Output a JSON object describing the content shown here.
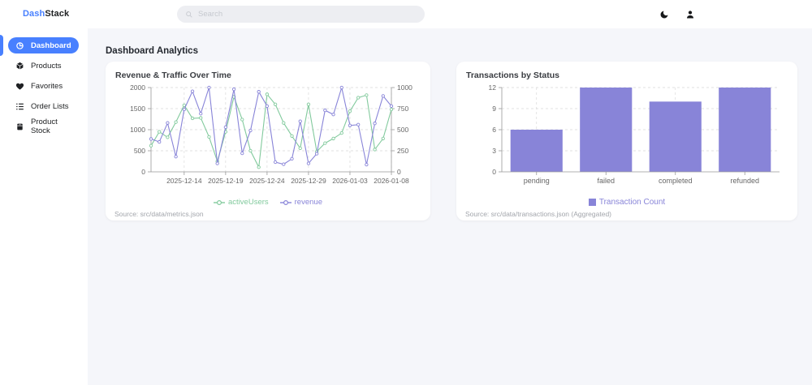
{
  "header": {
    "logo_part1": "Dash",
    "logo_part2": "Stack",
    "search_placeholder": "Search",
    "theme_toggle": "dark-mode",
    "account": "user"
  },
  "sidebar": {
    "items": [
      {
        "label": "Dashboard",
        "icon": "dashboard-icon",
        "active": true
      },
      {
        "label": "Products",
        "icon": "products-icon",
        "active": false
      },
      {
        "label": "Favorites",
        "icon": "heart-icon",
        "active": false
      },
      {
        "label": "Order Lists",
        "icon": "order-list-icon",
        "active": false
      },
      {
        "label": "Product Stock",
        "icon": "product-stock-icon",
        "active": false
      }
    ]
  },
  "main": {
    "heading": "Dashboard Analytics"
  },
  "colors": {
    "accent_blue": "#4880ff",
    "series_green": "#82ca9d",
    "series_purple": "#8884d8",
    "axis_text": "#666666",
    "grid": "#d9d9d9",
    "axis_line": "#999999"
  },
  "chart_data": [
    {
      "type": "line",
      "title": "Revenue & Traffic Over Time",
      "source": "Source: src/data/metrics.json",
      "x": [
        "2025-12-10",
        "2025-12-11",
        "2025-12-12",
        "2025-12-13",
        "2025-12-14",
        "2025-12-15",
        "2025-12-16",
        "2025-12-17",
        "2025-12-18",
        "2025-12-19",
        "2025-12-20",
        "2025-12-21",
        "2025-12-22",
        "2025-12-23",
        "2025-12-24",
        "2025-12-25",
        "2025-12-26",
        "2025-12-27",
        "2025-12-28",
        "2025-12-29",
        "2025-12-30",
        "2025-12-31",
        "2026-01-01",
        "2026-01-02",
        "2026-01-03",
        "2026-01-04",
        "2026-01-05",
        "2026-01-06",
        "2026-01-07",
        "2026-01-08"
      ],
      "x_tick_labels": [
        "2025-12-14",
        "2025-12-19",
        "2025-12-24",
        "2025-12-29",
        "2026-01-03",
        "2026-01-08"
      ],
      "series": [
        {
          "name": "activeUsers",
          "axis": "left",
          "color": "#82ca9d",
          "values": [
            620,
            950,
            820,
            1180,
            1580,
            1270,
            1280,
            830,
            250,
            950,
            1780,
            1240,
            500,
            110,
            1840,
            1600,
            1160,
            850,
            560,
            1600,
            480,
            680,
            790,
            920,
            1440,
            1760,
            1820,
            530,
            790,
            1480
          ]
        },
        {
          "name": "revenue",
          "axis": "right",
          "color": "#8884d8",
          "values": [
            390,
            355,
            580,
            180,
            740,
            955,
            690,
            1000,
            100,
            530,
            980,
            220,
            490,
            950,
            780,
            115,
            90,
            155,
            600,
            100,
            215,
            730,
            680,
            1000,
            550,
            560,
            85,
            575,
            900,
            780
          ]
        }
      ],
      "left_axis": {
        "range": [
          0,
          2000
        ],
        "ticks": [
          0,
          500,
          1000,
          1500,
          2000
        ]
      },
      "right_axis": {
        "range": [
          0,
          1000
        ],
        "ticks": [
          0,
          250,
          500,
          750,
          1000
        ]
      },
      "grid": "dashed",
      "legend_position": "bottom"
    },
    {
      "type": "bar",
      "title": "Transactions by Status",
      "source": "Source: src/data/transactions.json (Aggregated)",
      "categories": [
        "pending",
        "failed",
        "completed",
        "refunded"
      ],
      "values": [
        6,
        12,
        10,
        12
      ],
      "series_name": "Transaction Count",
      "color": "#8884d8",
      "ylim": [
        0,
        12
      ],
      "y_ticks": [
        0,
        3,
        6,
        9,
        12
      ],
      "grid": "dashed",
      "legend_position": "bottom"
    }
  ]
}
